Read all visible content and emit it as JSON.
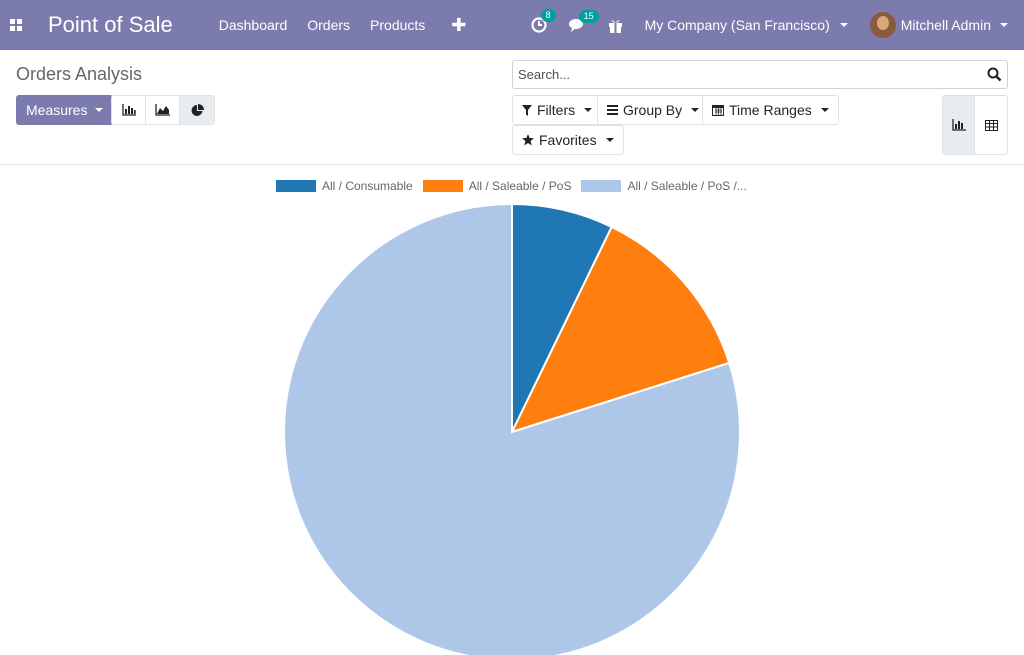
{
  "navbar": {
    "app_title": "Point of Sale",
    "menu": [
      "Dashboard",
      "Orders",
      "Products"
    ],
    "activity_count": "8",
    "messages_count": "15",
    "company": "My Company (San Francisco)",
    "user": "Mitchell Admin",
    "bg_color": "#7c7bad"
  },
  "control_panel": {
    "title": "Orders Analysis",
    "measures_label": "Measures",
    "search_placeholder": "Search...",
    "filters_label": "Filters",
    "group_by_label": "Group By",
    "time_ranges_label": "Time Ranges",
    "favorites_label": "Favorites",
    "view_types": [
      "bar-chart-icon",
      "line-chart-icon",
      "pie-chart-icon"
    ],
    "active_view_type": "pie-chart-icon",
    "view_switcher": [
      "graph-view-icon",
      "pivot-view-icon"
    ]
  },
  "chart_data": {
    "type": "pie",
    "labels": [
      "All / Consumable",
      "All / Saleable / PoS",
      "All / Saleable / PoS /..."
    ],
    "values": [
      7.2,
      12.9,
      79.9
    ],
    "colors": [
      "#1f77b4",
      "#ff7f0e",
      "#aec7e8"
    ],
    "legend": "top"
  }
}
